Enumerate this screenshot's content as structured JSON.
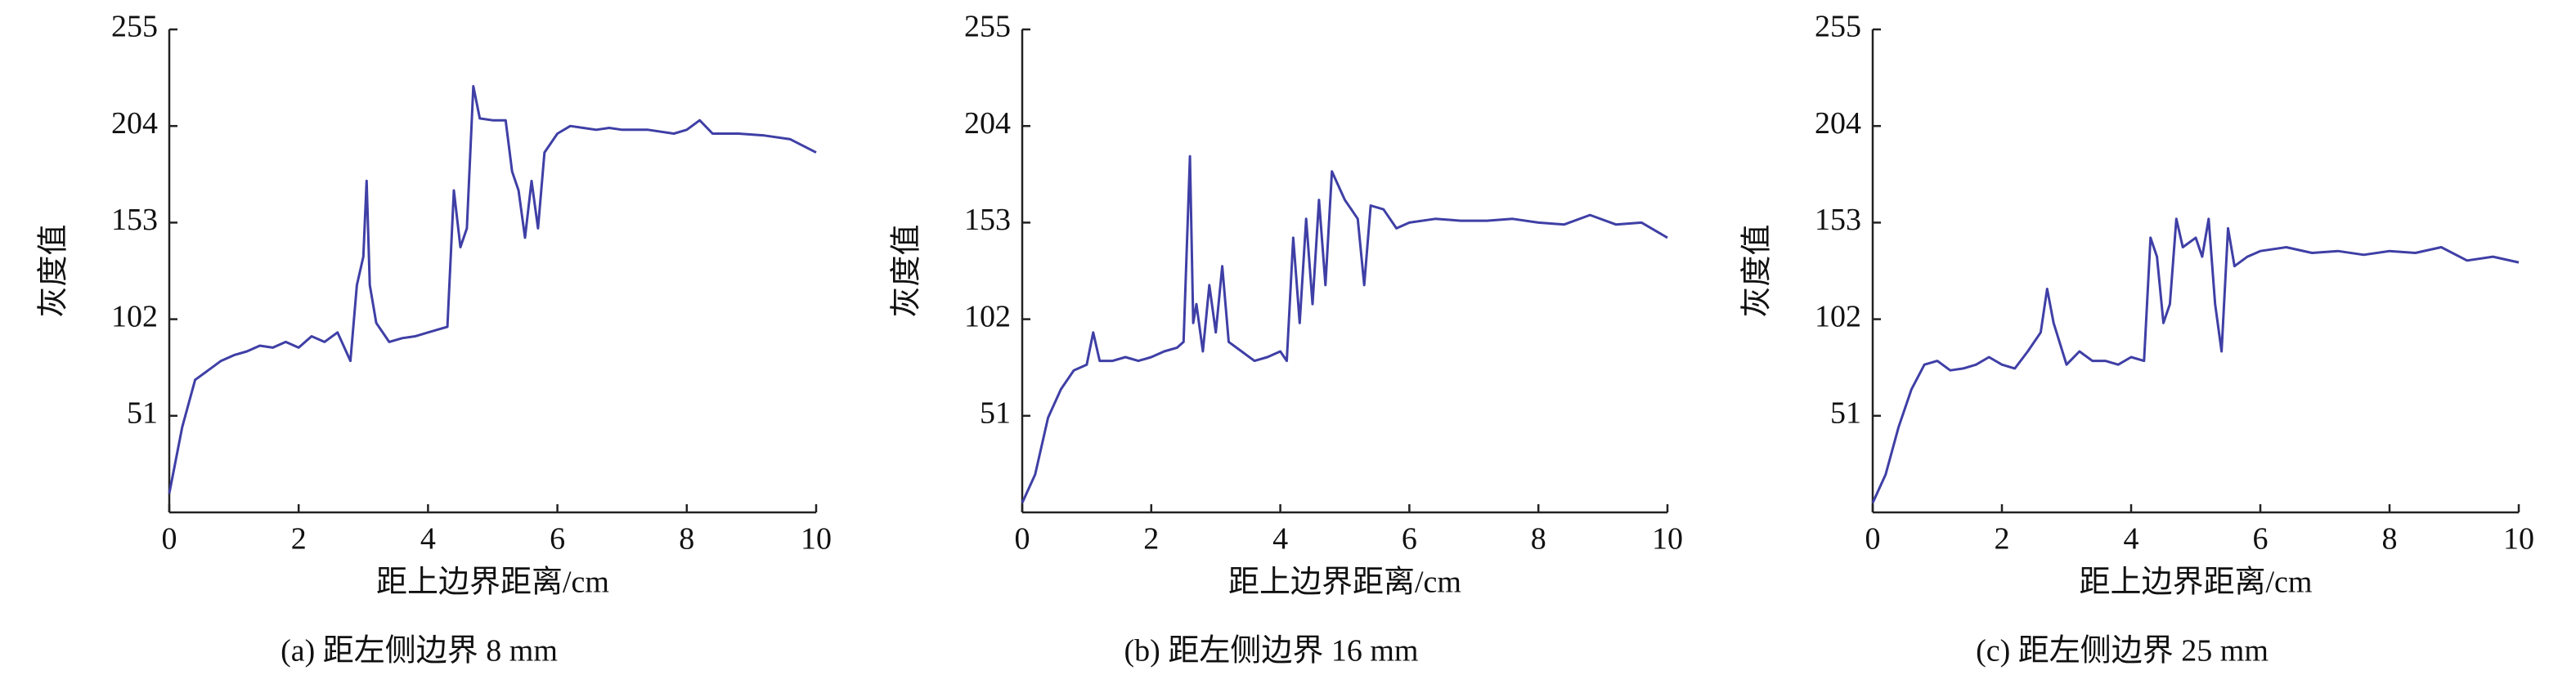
{
  "chart_data": [
    {
      "type": "line",
      "xlabel": "距上边界距离/cm",
      "ylabel": "灰度值",
      "caption": "(a) 距左侧边界 8 mm",
      "x": [
        0,
        0.2,
        0.4,
        0.6,
        0.8,
        1.0,
        1.2,
        1.4,
        1.6,
        1.8,
        2.0,
        2.2,
        2.4,
        2.6,
        2.8,
        2.9,
        3.0,
        3.05,
        3.1,
        3.2,
        3.4,
        3.6,
        3.8,
        4.0,
        4.2,
        4.3,
        4.4,
        4.5,
        4.6,
        4.7,
        4.8,
        5.0,
        5.2,
        5.3,
        5.4,
        5.5,
        5.6,
        5.7,
        5.8,
        6.0,
        6.2,
        6.4,
        6.6,
        6.8,
        7.0,
        7.4,
        7.8,
        8.0,
        8.2,
        8.4,
        8.8,
        9.2,
        9.6,
        10
      ],
      "series": [
        {
          "color": "#3f3fa6",
          "values": [
            10,
            45,
            70,
            75,
            80,
            83,
            85,
            88,
            87,
            90,
            87,
            93,
            90,
            95,
            80,
            120,
            135,
            175,
            120,
            100,
            90,
            92,
            93,
            95,
            97,
            98,
            170,
            140,
            150,
            225,
            208,
            207,
            207,
            180,
            170,
            145,
            175,
            150,
            190,
            200,
            204,
            203,
            202,
            203,
            202,
            202,
            200,
            202,
            207,
            200,
            200,
            199,
            197,
            190
          ]
        }
      ],
      "xlim": [
        0,
        10
      ],
      "xticks": [
        0,
        2,
        4,
        6,
        8,
        10
      ],
      "ylim": [
        0,
        255
      ],
      "yticks": [
        51,
        102,
        153,
        204,
        255
      ]
    },
    {
      "type": "line",
      "xlabel": "距上边界距离/cm",
      "ylabel": "灰度值",
      "caption": "(b) 距左侧边界 16 mm",
      "x": [
        0,
        0.2,
        0.4,
        0.6,
        0.8,
        1.0,
        1.1,
        1.2,
        1.4,
        1.6,
        1.8,
        2.0,
        2.2,
        2.4,
        2.5,
        2.6,
        2.65,
        2.7,
        2.8,
        2.9,
        3.0,
        3.1,
        3.2,
        3.4,
        3.6,
        3.8,
        4.0,
        4.1,
        4.2,
        4.3,
        4.4,
        4.5,
        4.6,
        4.7,
        4.8,
        5.0,
        5.2,
        5.3,
        5.4,
        5.6,
        5.8,
        6.0,
        6.4,
        6.8,
        7.2,
        7.6,
        8.0,
        8.4,
        8.8,
        9.2,
        9.6,
        10
      ],
      "series": [
        {
          "color": "#3f3fa6",
          "values": [
            5,
            20,
            50,
            65,
            75,
            78,
            95,
            80,
            80,
            82,
            80,
            82,
            85,
            87,
            90,
            188,
            100,
            110,
            85,
            120,
            95,
            130,
            90,
            85,
            80,
            82,
            85,
            80,
            145,
            100,
            155,
            110,
            165,
            120,
            180,
            165,
            155,
            120,
            162,
            160,
            150,
            153,
            155,
            154,
            154,
            155,
            153,
            152,
            157,
            152,
            153,
            145
          ]
        }
      ],
      "xlim": [
        0,
        10
      ],
      "xticks": [
        0,
        2,
        4,
        6,
        8,
        10
      ],
      "ylim": [
        0,
        255
      ],
      "yticks": [
        51,
        102,
        153,
        204,
        255
      ]
    },
    {
      "type": "line",
      "xlabel": "距上边界距离/cm",
      "ylabel": "灰度值",
      "caption": "(c) 距左侧边界 25 mm",
      "x": [
        0,
        0.2,
        0.4,
        0.6,
        0.8,
        1.0,
        1.2,
        1.4,
        1.6,
        1.8,
        2.0,
        2.2,
        2.4,
        2.6,
        2.7,
        2.8,
        3.0,
        3.2,
        3.4,
        3.6,
        3.8,
        4.0,
        4.2,
        4.3,
        4.4,
        4.5,
        4.6,
        4.7,
        4.8,
        5.0,
        5.1,
        5.2,
        5.3,
        5.4,
        5.5,
        5.6,
        5.8,
        6.0,
        6.4,
        6.8,
        7.2,
        7.6,
        8.0,
        8.4,
        8.8,
        9.2,
        9.6,
        10
      ],
      "series": [
        {
          "color": "#3f3fa6",
          "values": [
            5,
            20,
            45,
            65,
            78,
            80,
            75,
            76,
            78,
            82,
            78,
            76,
            85,
            95,
            118,
            100,
            78,
            85,
            80,
            80,
            78,
            82,
            80,
            145,
            135,
            100,
            110,
            155,
            140,
            145,
            135,
            155,
            110,
            85,
            150,
            130,
            135,
            138,
            140,
            137,
            138,
            136,
            138,
            137,
            140,
            133,
            135,
            132
          ]
        }
      ],
      "xlim": [
        0,
        10
      ],
      "xticks": [
        0,
        2,
        4,
        6,
        8,
        10
      ],
      "ylim": [
        0,
        255
      ],
      "yticks": [
        51,
        102,
        153,
        204,
        255
      ]
    }
  ]
}
